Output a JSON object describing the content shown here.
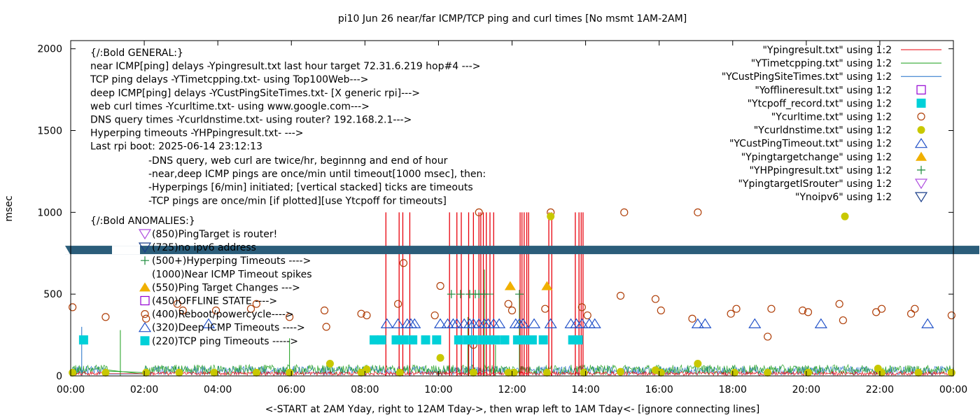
{
  "chart_data": {
    "type": "scatter",
    "title": "pi10 Jun 26  near/far ICMP/TCP ping and curl times [No msmt 1AM-2AM]",
    "xlabel": "<-START at 2AM Yday, right to 12AM Tday->, then wrap left to 1AM Tday<- [ignore connecting lines]",
    "ylabel": "msec",
    "xlim": [
      0,
      24
    ],
    "ylim": [
      0,
      2050
    ],
    "x_ticks": [
      {
        "v": 0,
        "label": "00:00"
      },
      {
        "v": 2,
        "label": "02:00"
      },
      {
        "v": 4,
        "label": "04:00"
      },
      {
        "v": 6,
        "label": "06:00"
      },
      {
        "v": 8,
        "label": "08:00"
      },
      {
        "v": 10,
        "label": "10:00"
      },
      {
        "v": 12,
        "label": "12:00"
      },
      {
        "v": 14,
        "label": "14:00"
      },
      {
        "v": 16,
        "label": "16:00"
      },
      {
        "v": 18,
        "label": "18:00"
      },
      {
        "v": 20,
        "label": "20:00"
      },
      {
        "v": 22,
        "label": "22:00"
      },
      {
        "v": 24,
        "label": "00:00"
      }
    ],
    "y_ticks": [
      {
        "v": 0,
        "label": "0"
      },
      {
        "v": 500,
        "label": "500"
      },
      {
        "v": 1000,
        "label": "1000"
      },
      {
        "v": 1500,
        "label": "1500"
      },
      {
        "v": 2000,
        "label": "2000"
      }
    ],
    "band": {
      "y": 770,
      "color": "#2b5d7a"
    },
    "legend": [
      {
        "name": "legend-ypingresult",
        "label": "\"Ypingresult.txt\" using 1:2",
        "kind": "line",
        "color": "#e8000b"
      },
      {
        "name": "legend-ytimetcpping",
        "label": "\"YTimetcpping.txt\" using 1:2",
        "kind": "line",
        "color": "#1a9e1a"
      },
      {
        "name": "legend-ycustpingsitetimes",
        "label": "\"YCustPingSiteTimes.txt\" using 1:2",
        "kind": "line",
        "color": "#1f6ec8"
      },
      {
        "name": "legend-yofflineresult",
        "label": "\"Yofflineresult.txt\" using 1:2",
        "kind": "square-open",
        "color": "#9400d3"
      },
      {
        "name": "legend-ytcpoff-record",
        "label": "\"Ytcpoff_record.txt\" using 1:2",
        "kind": "square-filled",
        "color": "#00d0d8"
      },
      {
        "name": "legend-ycurltime",
        "label": "\"Ycurltime.txt\" using 1:2",
        "kind": "circle-open",
        "color": "#b0400a"
      },
      {
        "name": "legend-ycurldnstime",
        "label": "\"Ycurldnstime.txt\" using 1:2",
        "kind": "circle-filled",
        "color": "#c8c800"
      },
      {
        "name": "legend-ycustpingtimeout",
        "label": "\"YCustPingTimeout.txt\" using 1:2",
        "kind": "triangle-up-open",
        "color": "#2050c8"
      },
      {
        "name": "legend-ypingtargetchange",
        "label": "\"Ypingtargetchange\" using 1:2",
        "kind": "triangle-up-filled",
        "color": "#f0b000"
      },
      {
        "name": "legend-yhppingresult",
        "label": "\"YHPpingresult.txt\" using 1:2",
        "kind": "plus",
        "color": "#1a8a3a"
      },
      {
        "name": "legend-ypingtargetisrouter",
        "label": "\"YpingtargetISrouter\" using 1:2",
        "kind": "triangle-down-open",
        "color": "#b050e0"
      },
      {
        "name": "legend-ynoipv6",
        "label": "\"Ynoipv6\" using 1:2",
        "kind": "triangle-down-open",
        "color": "#1a3e8a"
      }
    ],
    "annotations_general": [
      "{/:Bold GENERAL:}",
      "near ICMP[ping] delays -Ypingresult.txt last hour target 72.31.6.219 hop#4 --->",
      "TCP ping delays -YTimetcpping.txt- using Top100Web--->",
      "deep ICMP[ping] delays -YCustPingSiteTimes.txt- [X generic rpi]--->",
      "web curl times -Ycurltime.txt- using www.google.com--->",
      "DNS query times -Ycurldnstime.txt- using router? 192.168.2.1--->",
      "Hyperping timeouts -YHPpingresult.txt- --->",
      "Last rpi boot: 2025-06-14 23:12:13"
    ],
    "annotations_notes": [
      "-DNS query, web curl are twice/hr, beginnng and end of hour",
      "-near,deep ICMP pings are once/min until timeout[1000 msec], then:",
      "  -Hyperpings [6/min] initiated; [vertical stacked] ticks are timeouts",
      "-TCP pings are once/min [if plotted][use Ytcpoff for timeouts]"
    ],
    "anomalies_title": "{/:Bold ANOMALIES:}",
    "anomalies": [
      {
        "label": "(850)PingTarget is router!",
        "kind": "triangle-down-open",
        "color": "#b050e0"
      },
      {
        "label": "(725)no ipv6 address",
        "kind": "triangle-down-open",
        "color": "#1a3e8a"
      },
      {
        "label": "(500+)Hyperping Timeouts ---->",
        "kind": "plus",
        "color": "#1a8a3a"
      },
      {
        "label": "(1000)Near ICMP Timeout spikes",
        "kind": "none",
        "color": "#000000"
      },
      {
        "label": "(550)Ping Target Changes --->",
        "kind": "triangle-up-filled",
        "color": "#f0b000"
      },
      {
        "label": "(450)OFFLINE STATE ---->",
        "kind": "square-open",
        "color": "#9400d3"
      },
      {
        "label": "(400)Reboot/powercycle---->",
        "kind": "circle-open",
        "color": "#b0400a"
      },
      {
        "label": "(320)Deep ICMP Timeouts ---->",
        "kind": "triangle-up-open",
        "color": "#2050c8"
      },
      {
        "label": "(220)TCP ping Timeouts ----->",
        "kind": "square-filled",
        "color": "#00d0d8"
      }
    ],
    "near_icmp_timeout_spikes_x": [
      8.57,
      8.93,
      9.03,
      9.22,
      10.3,
      10.5,
      10.62,
      10.82,
      10.95,
      11.1,
      11.15,
      11.22,
      11.3,
      11.4,
      11.5,
      12.22,
      12.27,
      12.33,
      12.4,
      12.45,
      13.0,
      13.08,
      13.72,
      13.82,
      13.88,
      13.93
    ],
    "tcp_spikes": [
      {
        "x": 1.35,
        "y": 280
      },
      {
        "x": 5.95,
        "y": 230
      },
      {
        "x": 10.8,
        "y": 360
      },
      {
        "x": 11.25,
        "y": 650
      },
      {
        "x": 11.55,
        "y": 190
      },
      {
        "x": 12.2,
        "y": 480
      }
    ],
    "deep_spikes": [
      {
        "x": 0.3,
        "y": 300
      },
      {
        "x": 10.9,
        "y": 330
      },
      {
        "x": 11.1,
        "y": 280
      }
    ],
    "ycurltime": [
      {
        "x": 0.05,
        "y": 420
      },
      {
        "x": 0.95,
        "y": 360
      },
      {
        "x": 2.05,
        "y": 350
      },
      {
        "x": 2.9,
        "y": 440
      },
      {
        "x": 3.05,
        "y": 400
      },
      {
        "x": 3.95,
        "y": 400
      },
      {
        "x": 4.9,
        "y": 410
      },
      {
        "x": 5.05,
        "y": 440
      },
      {
        "x": 5.95,
        "y": 360
      },
      {
        "x": 6.95,
        "y": 300
      },
      {
        "x": 6.9,
        "y": 400
      },
      {
        "x": 7.9,
        "y": 380
      },
      {
        "x": 8.05,
        "y": 370
      },
      {
        "x": 8.9,
        "y": 440
      },
      {
        "x": 9.05,
        "y": 690
      },
      {
        "x": 9.9,
        "y": 370
      },
      {
        "x": 10.05,
        "y": 550
      },
      {
        "x": 10.95,
        "y": 190
      },
      {
        "x": 11.1,
        "y": 1000
      },
      {
        "x": 11.9,
        "y": 440
      },
      {
        "x": 12.0,
        "y": 400
      },
      {
        "x": 12.9,
        "y": 410
      },
      {
        "x": 13.05,
        "y": 1000
      },
      {
        "x": 13.9,
        "y": 420
      },
      {
        "x": 14.05,
        "y": 370
      },
      {
        "x": 14.95,
        "y": 490
      },
      {
        "x": 15.05,
        "y": 1000
      },
      {
        "x": 15.9,
        "y": 470
      },
      {
        "x": 16.05,
        "y": 400
      },
      {
        "x": 16.9,
        "y": 350
      },
      {
        "x": 17.05,
        "y": 1000
      },
      {
        "x": 17.95,
        "y": 380
      },
      {
        "x": 18.1,
        "y": 410
      },
      {
        "x": 18.95,
        "y": 240
      },
      {
        "x": 19.05,
        "y": 410
      },
      {
        "x": 19.9,
        "y": 400
      },
      {
        "x": 20.05,
        "y": 390
      },
      {
        "x": 20.9,
        "y": 440
      },
      {
        "x": 21.0,
        "y": 340
      },
      {
        "x": 21.9,
        "y": 390
      },
      {
        "x": 22.05,
        "y": 410
      },
      {
        "x": 22.85,
        "y": 380
      },
      {
        "x": 22.95,
        "y": 410
      },
      {
        "x": 23.95,
        "y": 370
      }
    ],
    "ycurldnstime": [
      {
        "x": 0.05,
        "y": 20
      },
      {
        "x": 0.95,
        "y": 20
      },
      {
        "x": 2.05,
        "y": 20
      },
      {
        "x": 2.95,
        "y": 20
      },
      {
        "x": 3.9,
        "y": 20
      },
      {
        "x": 5.05,
        "y": 20
      },
      {
        "x": 5.95,
        "y": 20
      },
      {
        "x": 7.05,
        "y": 75
      },
      {
        "x": 7.9,
        "y": 20
      },
      {
        "x": 8.05,
        "y": 40
      },
      {
        "x": 8.95,
        "y": 20
      },
      {
        "x": 10.05,
        "y": 110
      },
      {
        "x": 10.95,
        "y": 20
      },
      {
        "x": 11.9,
        "y": 20
      },
      {
        "x": 12.05,
        "y": 20
      },
      {
        "x": 12.95,
        "y": 20
      },
      {
        "x": 13.05,
        "y": 975
      },
      {
        "x": 13.95,
        "y": 20
      },
      {
        "x": 14.95,
        "y": 25
      },
      {
        "x": 15.9,
        "y": 35
      },
      {
        "x": 16.05,
        "y": 20
      },
      {
        "x": 17.05,
        "y": 75
      },
      {
        "x": 18.05,
        "y": 20
      },
      {
        "x": 18.95,
        "y": 20
      },
      {
        "x": 20.05,
        "y": 20
      },
      {
        "x": 21.05,
        "y": 975
      },
      {
        "x": 21.95,
        "y": 45
      },
      {
        "x": 22.05,
        "y": 20
      },
      {
        "x": 23.05,
        "y": 20
      },
      {
        "x": 23.95,
        "y": 20
      }
    ],
    "ycustpingtimeout": [
      8.6,
      8.9,
      9.15,
      9.25,
      9.35,
      10.05,
      10.25,
      10.4,
      10.5,
      10.7,
      10.85,
      10.95,
      11.1,
      11.25,
      11.35,
      11.5,
      11.65,
      12.1,
      12.2,
      12.3,
      12.6,
      13.05,
      13.6,
      13.75,
      13.9,
      14.1,
      14.25,
      17.05,
      17.25,
      18.6,
      20.4,
      23.3,
      3.75
    ],
    "ycustpingtimeout_y": 320,
    "ytcpoff_record": [
      0.35,
      8.25,
      8.45,
      8.85,
      9.05,
      9.3,
      9.65,
      9.95,
      10.55,
      10.8,
      10.95,
      11.2,
      11.35,
      11.55,
      11.8,
      12.15,
      12.35,
      12.55,
      12.85,
      13.65,
      13.8
    ],
    "ytcpoff_record_y": 220,
    "ypingtargetchange": [
      {
        "x": 11.95,
        "y": 550
      },
      {
        "x": 12.95,
        "y": 550
      }
    ],
    "yhppingresult": [
      10.35,
      10.6,
      10.85,
      11.0,
      11.1,
      11.25,
      12.2
    ]
  }
}
